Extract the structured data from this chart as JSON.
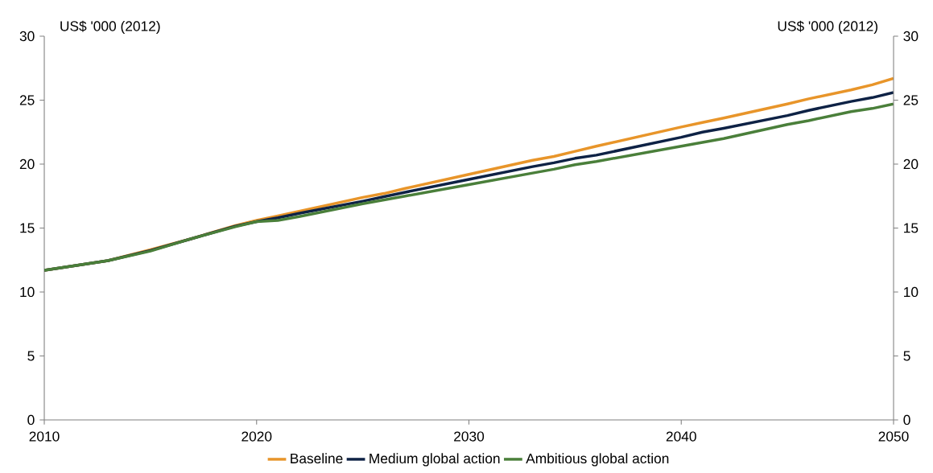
{
  "chart_data": {
    "type": "line",
    "ylabel": "US$ '000 (2012)",
    "y2label": "US$ '000 (2012)",
    "x": [
      2010,
      2013,
      2015,
      2017,
      2019,
      2020,
      2021,
      2022,
      2025,
      2026,
      2027,
      2030,
      2033,
      2034,
      2035,
      2036,
      2040,
      2041,
      2042,
      2045,
      2046,
      2048,
      2049,
      2050
    ],
    "series": [
      {
        "name": "Baseline",
        "color": "#e8952a",
        "values": [
          11.7,
          12.45,
          13.3,
          14.2,
          15.2,
          15.6,
          15.95,
          16.3,
          17.4,
          17.7,
          18.1,
          19.2,
          20.3,
          20.6,
          21.0,
          21.4,
          22.9,
          23.25,
          23.6,
          24.7,
          25.1,
          25.8,
          26.2,
          26.7
        ]
      },
      {
        "name": "Medium global action",
        "color": "#0e2245",
        "values": [
          11.7,
          12.45,
          13.25,
          14.2,
          15.15,
          15.5,
          15.8,
          16.15,
          17.1,
          17.45,
          17.8,
          18.8,
          19.8,
          20.1,
          20.45,
          20.7,
          22.1,
          22.5,
          22.8,
          23.8,
          24.2,
          24.9,
          25.2,
          25.6
        ]
      },
      {
        "name": "Ambitious global action",
        "color": "#4a7f3a",
        "values": [
          11.7,
          12.45,
          13.2,
          14.2,
          15.1,
          15.5,
          15.6,
          15.9,
          16.9,
          17.2,
          17.5,
          18.4,
          19.3,
          19.6,
          19.95,
          20.2,
          21.4,
          21.7,
          22.0,
          23.1,
          23.4,
          24.1,
          24.35,
          24.7
        ]
      }
    ],
    "xlim": [
      2010,
      2050
    ],
    "xticks": [
      2010,
      2020,
      2030,
      2040,
      2050
    ],
    "ylim": [
      0,
      30
    ],
    "yticks": [
      0,
      5,
      10,
      15,
      20,
      25,
      30
    ],
    "y2lim": [
      0,
      30
    ],
    "y2ticks": [
      0,
      5,
      10,
      15,
      20,
      25,
      30
    ],
    "grid": false,
    "legend": "bottom",
    "marker": "none",
    "line_style": "solid"
  }
}
